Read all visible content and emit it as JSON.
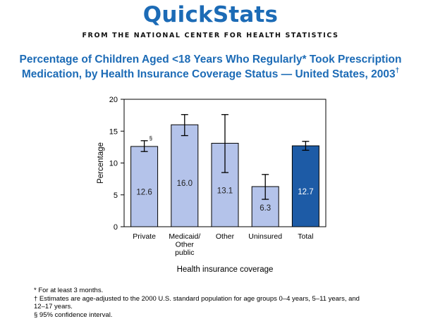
{
  "header": {
    "brand": "QuickStats",
    "source": "FROM THE NATIONAL CENTER FOR HEALTH STATISTICS",
    "title_line1": "Percentage of Children Aged <18 Years Who Regularly* Took Prescription",
    "title_line2": "Medication, by Health Insurance Coverage Status — United States, 2003",
    "title_mark": "†"
  },
  "chart_data": {
    "type": "bar",
    "categories": [
      "Private",
      "Medicaid/ Other public",
      "Other",
      "Uninsured",
      "Total"
    ],
    "category_lines": [
      [
        "Private"
      ],
      [
        "Medicaid/",
        "Other",
        "public"
      ],
      [
        "Other"
      ],
      [
        "Uninsured"
      ],
      [
        "Total"
      ]
    ],
    "values": [
      12.6,
      16.0,
      13.1,
      6.3,
      12.7
    ],
    "value_labels": [
      "12.6",
      "16.0",
      "13.1",
      "6.3",
      "12.7"
    ],
    "ci_low": [
      11.8,
      14.3,
      8.5,
      4.3,
      12.0
    ],
    "ci_high": [
      13.5,
      17.6,
      17.6,
      8.2,
      13.4
    ],
    "bar_colors": [
      "#b4c3ea",
      "#b4c3ea",
      "#b4c3ea",
      "#b4c3ea",
      "#1d5ba6"
    ],
    "value_label_colors": [
      "#222222",
      "#222222",
      "#222222",
      "#222222",
      "#ffffff"
    ],
    "annotation": "§",
    "xlabel": "Health insurance coverage",
    "ylabel": "Percentage",
    "ylim": [
      0,
      20
    ],
    "yticks": [
      "0",
      "5",
      "10",
      "15",
      "20"
    ]
  },
  "footnotes": {
    "f1_mark": "*",
    "f1": " For at least 3 months.",
    "f2_mark": "†",
    "f2": " Estimates are age-adjusted to the 2000 U.S. standard population for age groups 0–4 years, 5–11 years, and",
    "f2_cont": "12–17 years.",
    "f3_mark": "§",
    "f3": " 95% confidence interval."
  }
}
